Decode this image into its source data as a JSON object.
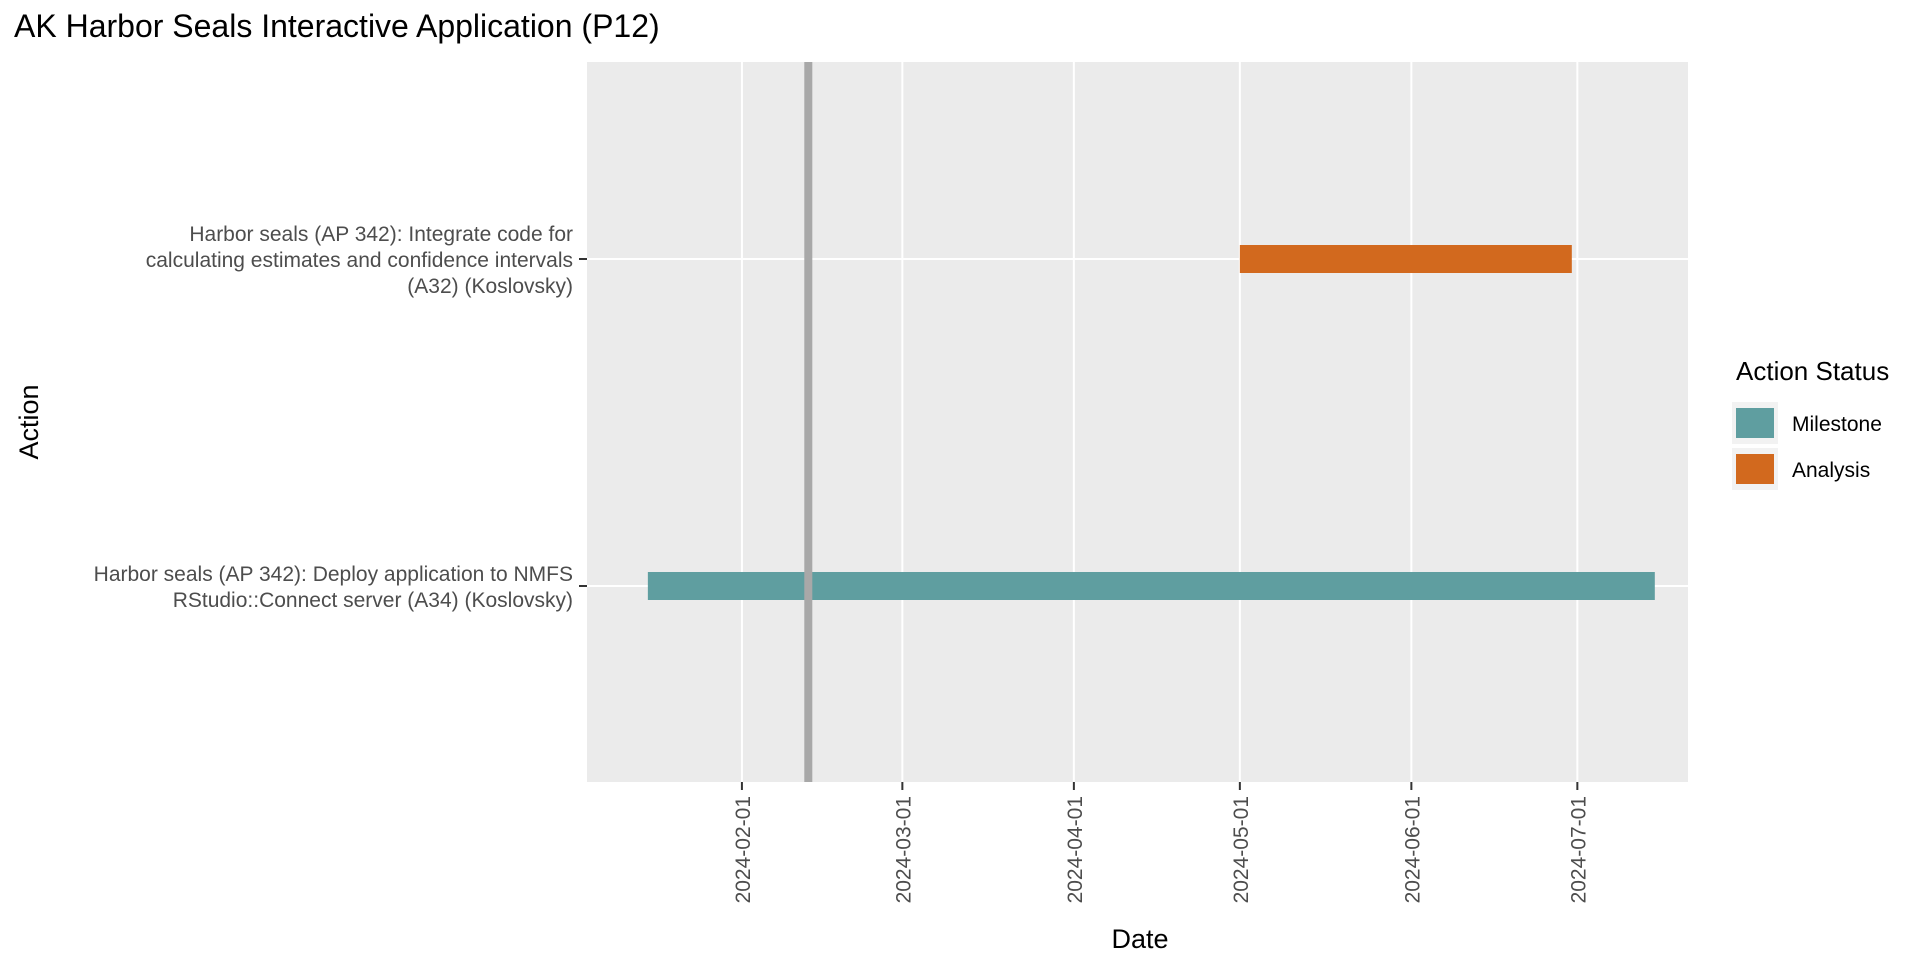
{
  "chart_data": {
    "type": "gantt",
    "title": "AK Harbor Seals Interactive Application (P12)",
    "xlabel": "Date",
    "ylabel": "Action",
    "x_ticks": [
      "2024-02-01",
      "2024-03-01",
      "2024-04-01",
      "2024-05-01",
      "2024-06-01",
      "2024-07-01"
    ],
    "xlim": [
      "2024-01-04",
      "2024-07-21"
    ],
    "reference_line_date": "2024-02-13",
    "categories": [
      [
        "Harbor seals (AP 342): Deploy application to NMFS",
        "RStudio::Connect server (A34) (Koslovsky)"
      ],
      [
        "Harbor seals (AP 342): Integrate code for",
        "calculating estimates and confidence intervals",
        "(A32) (Koslovsky)"
      ]
    ],
    "tasks": [
      {
        "category_index": 0,
        "start": "2024-01-15",
        "end": "2024-07-15",
        "status": "Milestone"
      },
      {
        "category_index": 1,
        "start": "2024-05-01",
        "end": "2024-06-30",
        "status": "Analysis"
      }
    ],
    "legend": {
      "title": "Action Status",
      "placement": "right",
      "items": [
        {
          "label": "Milestone",
          "color": "#5f9ea0"
        },
        {
          "label": "Analysis",
          "color": "#d2691e"
        }
      ]
    },
    "colors": {
      "panel_background": "#ebebeb",
      "grid": "#ffffff",
      "reference_line": "#a8a8a8",
      "axis_text": "#4d4d4d"
    }
  }
}
